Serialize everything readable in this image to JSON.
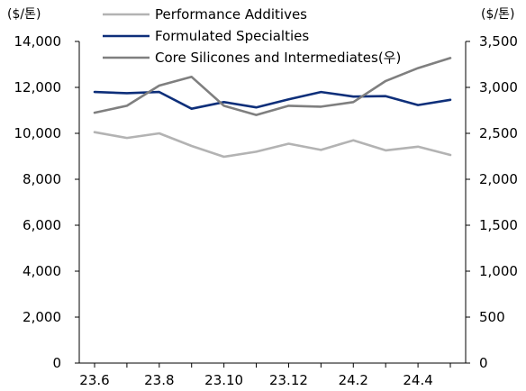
{
  "chart_data": {
    "type": "line",
    "title": "",
    "left_unit": "($/톤)",
    "right_unit": "($/톤)",
    "x": [
      "23.6",
      "23.7",
      "23.8",
      "23.9",
      "23.10",
      "23.11",
      "23.12",
      "24.1",
      "24.2",
      "24.3",
      "24.4",
      "24.5"
    ],
    "x_tick_labels": [
      "23.6",
      "23.8",
      "23.10",
      "23.12",
      "24.2",
      "24.4"
    ],
    "y_left": {
      "min": 0,
      "max": 14000,
      "step": 2000,
      "tick_labels": [
        "0",
        "2,000",
        "4,000",
        "6,000",
        "8,000",
        "10,000",
        "12,000",
        "14,000"
      ]
    },
    "y_right": {
      "min": 0,
      "max": 3500,
      "step": 500,
      "tick_labels": [
        "0",
        "500",
        "1,000",
        "1,500",
        "2,000",
        "2,500",
        "3,000",
        "3,500"
      ]
    },
    "legend_position": "top",
    "series": [
      {
        "name": "Performance Additives",
        "axis": "left",
        "color": "#b3b3b3",
        "values": [
          10050,
          9800,
          10000,
          9450,
          8980,
          9200,
          9550,
          9280,
          9700,
          9260,
          9420,
          9060
        ]
      },
      {
        "name": "Formulated Specialties",
        "axis": "left",
        "color": "#0e2f7a",
        "values": [
          11800,
          11750,
          11800,
          11070,
          11360,
          11130,
          11480,
          11800,
          11600,
          11620,
          11230,
          11460
        ]
      },
      {
        "name": "Core Silicones and Intermediates(우)",
        "axis": "right",
        "color": "#7f7f7f",
        "values": [
          2725,
          2800,
          3020,
          3115,
          2800,
          2700,
          2800,
          2790,
          2840,
          3070,
          3210,
          3320
        ]
      }
    ]
  }
}
